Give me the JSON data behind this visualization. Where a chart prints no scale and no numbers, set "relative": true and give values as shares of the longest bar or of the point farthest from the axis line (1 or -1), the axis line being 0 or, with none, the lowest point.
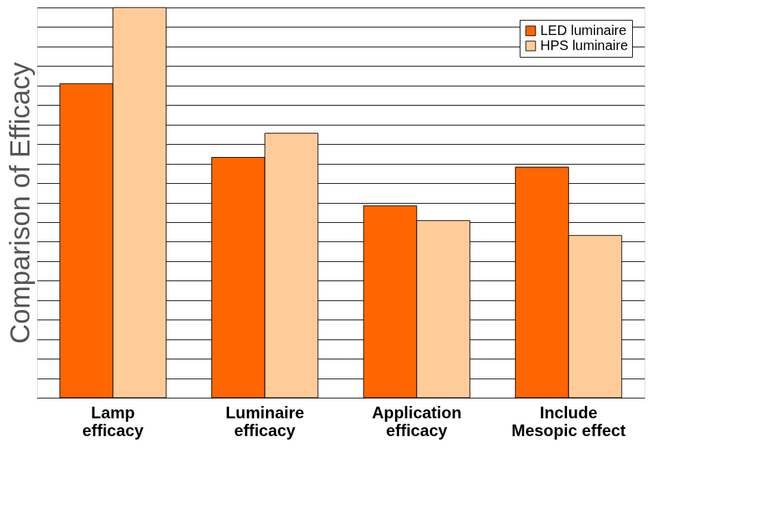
{
  "chart_data": {
    "type": "bar",
    "ylabel": "Comparison of Efficacy",
    "relative": true,
    "categories": [
      "Lamp efficacy",
      "Luminaire efficacy",
      "Application efficacy",
      "Include Mesopic effect"
    ],
    "series": [
      {
        "name": "LED luminaire",
        "color": "#ff6600",
        "values": [
          0.805,
          0.616,
          0.492,
          0.591
        ]
      },
      {
        "name": "HPS luminaire",
        "color": "#ffcc99",
        "values": [
          1,
          0.678,
          0.454,
          0.416
        ]
      }
    ],
    "grid": "y",
    "legend": "top right"
  }
}
